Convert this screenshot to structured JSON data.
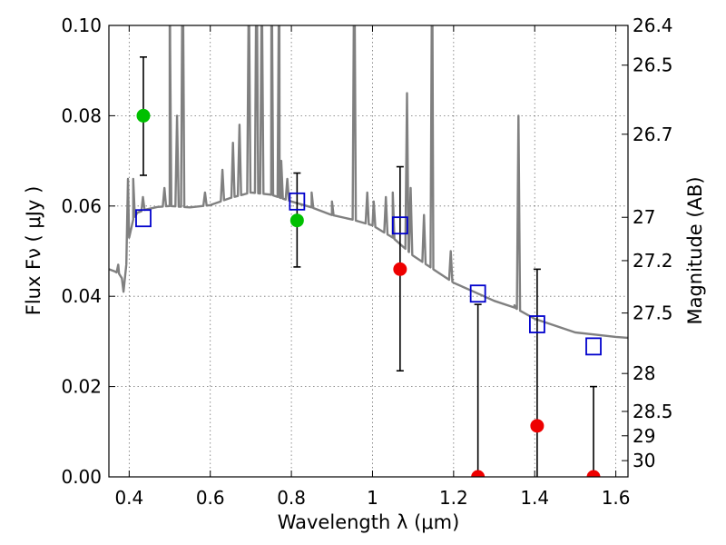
{
  "chart_data": {
    "type": "scatter",
    "xlabel": "Wavelength  λ (μm)",
    "ylabel": "Flux  Fν  ( μJy )",
    "ylabel_right": "Magnitude (AB)",
    "xlim": [
      0.35,
      1.63
    ],
    "ylim": [
      0.0,
      0.1
    ],
    "grid": true,
    "x_ticks": [
      0.4,
      0.6,
      0.8,
      1.0,
      1.2,
      1.4,
      1.6
    ],
    "x_tick_labels": [
      "0.4",
      "0.6",
      "0.8",
      "1",
      "1.2",
      "1.4",
      "1.6"
    ],
    "y_ticks": [
      0.0,
      0.02,
      0.04,
      0.06,
      0.08,
      0.1
    ],
    "y_tick_labels": [
      "0.00",
      "0.02",
      "0.04",
      "0.06",
      "0.08",
      "0.10"
    ],
    "mag_ticks": [
      {
        "label": "26.4",
        "flux": 0.1
      },
      {
        "label": "26.5",
        "flux": 0.0912
      },
      {
        "label": "26.7",
        "flux": 0.0759
      },
      {
        "label": "27",
        "flux": 0.0575
      },
      {
        "label": "27.2",
        "flux": 0.0479
      },
      {
        "label": "27.5",
        "flux": 0.0363
      },
      {
        "label": "28",
        "flux": 0.0229
      },
      {
        "label": "28.5",
        "flux": 0.0145
      },
      {
        "label": "29",
        "flux": 0.0091
      },
      {
        "label": "30",
        "flux": 0.0036
      }
    ],
    "observed_detected": {
      "color": "#00c000",
      "points": [
        {
          "x": 0.435,
          "y": 0.08,
          "yerr_lo": 0.0668,
          "yerr_hi": 0.093
        },
        {
          "x": 0.814,
          "y": 0.0568,
          "yerr_lo": 0.0465,
          "yerr_hi": 0.0673
        }
      ]
    },
    "observed_weak": {
      "color": "#ee0000",
      "points": [
        {
          "x": 1.068,
          "y": 0.046,
          "yerr_lo": 0.0235,
          "yerr_hi": 0.0687
        },
        {
          "x": 1.26,
          "y": 0.0,
          "yerr_lo": 0.0,
          "yerr_hi": 0.0382
        },
        {
          "x": 1.406,
          "y": 0.0113,
          "yerr_lo": 0.0,
          "yerr_hi": 0.046
        },
        {
          "x": 1.545,
          "y": 0.0,
          "yerr_lo": 0.0,
          "yerr_hi": 0.02
        }
      ]
    },
    "model_photometry": {
      "color": "#0000cc",
      "points": [
        {
          "x": 0.435,
          "y": 0.0573
        },
        {
          "x": 0.814,
          "y": 0.061
        },
        {
          "x": 1.068,
          "y": 0.0557
        },
        {
          "x": 1.26,
          "y": 0.0406
        },
        {
          "x": 1.406,
          "y": 0.0338
        },
        {
          "x": 1.545,
          "y": 0.0289
        }
      ]
    },
    "model_spectrum": {
      "color": "#808080",
      "continuum": [
        [
          0.35,
          0.046
        ],
        [
          0.365,
          0.0455
        ],
        [
          0.375,
          0.045
        ],
        [
          0.382,
          0.044
        ],
        [
          0.386,
          0.041
        ],
        [
          0.39,
          0.0445
        ],
        [
          0.4,
          0.053
        ],
        [
          0.41,
          0.057
        ],
        [
          0.42,
          0.0585
        ],
        [
          0.44,
          0.0592
        ],
        [
          0.47,
          0.0598
        ],
        [
          0.5,
          0.06
        ],
        [
          0.55,
          0.0597
        ],
        [
          0.6,
          0.0602
        ],
        [
          0.65,
          0.0618
        ],
        [
          0.7,
          0.063
        ],
        [
          0.75,
          0.0625
        ],
        [
          0.8,
          0.061
        ],
        [
          0.85,
          0.0597
        ],
        [
          0.9,
          0.058
        ],
        [
          0.95,
          0.057
        ],
        [
          1.0,
          0.0557
        ],
        [
          1.05,
          0.053
        ],
        [
          1.1,
          0.049
        ],
        [
          1.15,
          0.046
        ],
        [
          1.2,
          0.043
        ],
        [
          1.25,
          0.041
        ],
        [
          1.3,
          0.039
        ],
        [
          1.35,
          0.0375
        ],
        [
          1.4,
          0.035
        ],
        [
          1.45,
          0.0335
        ],
        [
          1.5,
          0.032
        ],
        [
          1.55,
          0.0315
        ],
        [
          1.6,
          0.031
        ],
        [
          1.63,
          0.0308
        ]
      ],
      "lines": [
        [
          0.373,
          0.047
        ],
        [
          0.397,
          0.066
        ],
        [
          0.41,
          0.066
        ],
        [
          0.434,
          0.062
        ],
        [
          0.487,
          0.064
        ],
        [
          0.501,
          0.095
        ],
        [
          0.5,
          0.12
        ],
        [
          0.518,
          0.08
        ],
        [
          0.532,
          0.12
        ],
        [
          0.587,
          0.063
        ],
        [
          0.63,
          0.068
        ],
        [
          0.656,
          0.074
        ],
        [
          0.672,
          0.078
        ],
        [
          0.695,
          0.11
        ],
        [
          0.714,
          0.12
        ],
        [
          0.727,
          0.11
        ],
        [
          0.751,
          0.12
        ],
        [
          0.77,
          0.12
        ],
        [
          0.775,
          0.07
        ],
        [
          0.79,
          0.066
        ],
        [
          0.85,
          0.063
        ],
        [
          0.9,
          0.061
        ],
        [
          0.955,
          0.12
        ],
        [
          0.987,
          0.063
        ],
        [
          1.003,
          0.061
        ],
        [
          1.033,
          0.062
        ],
        [
          1.05,
          0.063
        ],
        [
          1.085,
          0.085
        ],
        [
          1.094,
          0.064
        ],
        [
          1.127,
          0.058
        ],
        [
          1.147,
          0.12
        ],
        [
          1.193,
          0.05
        ],
        [
          1.36,
          0.08
        ],
        [
          1.35,
          0.038
        ]
      ]
    }
  }
}
